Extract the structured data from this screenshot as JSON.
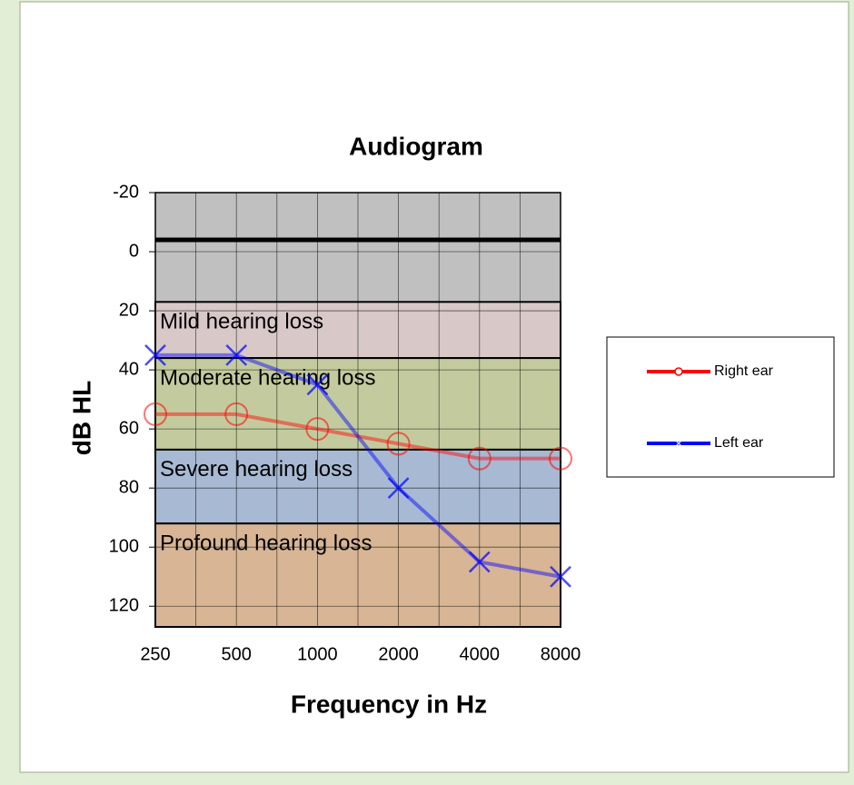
{
  "chart_data": {
    "type": "line",
    "title": "Audiogram",
    "x_label": "Frequency  in Hz",
    "y_label": "dB HL",
    "x": [
      250,
      500,
      1000,
      2000,
      4000,
      8000
    ],
    "xlim": [
      250,
      8000
    ],
    "xticks": [
      250,
      500,
      1000,
      2000,
      4000,
      8000
    ],
    "x_log_scale": true,
    "ylim": [
      127,
      -20
    ],
    "yticks": [
      -20,
      0,
      20,
      40,
      60,
      80,
      100,
      120
    ],
    "y_inverted": true,
    "grid": true,
    "reference_line": -4,
    "bands": [
      {
        "label": "Mild hearing loss",
        "range": [
          17,
          36
        ],
        "color": "#d8c8c8"
      },
      {
        "label": "Moderate hearing loss",
        "range": [
          36,
          67
        ],
        "color": "#c3cb9e"
      },
      {
        "label": "Severe hearing loss",
        "range": [
          67,
          92
        ],
        "color": "#a7b9d3"
      },
      {
        "label": "Profound hearing loss",
        "range": [
          92,
          127
        ],
        "color": "#d7b595"
      }
    ],
    "upper_band_color": "#c0c0c0",
    "legend_position": "right",
    "series": [
      {
        "name": "Right ear",
        "color": "#ff0000",
        "marker": "circle",
        "values": [
          55,
          55,
          60,
          65,
          70,
          70
        ]
      },
      {
        "name": "Left ear",
        "color": "#0000ff",
        "marker": "x",
        "values": [
          35,
          35,
          45,
          80,
          105,
          110
        ]
      }
    ]
  }
}
